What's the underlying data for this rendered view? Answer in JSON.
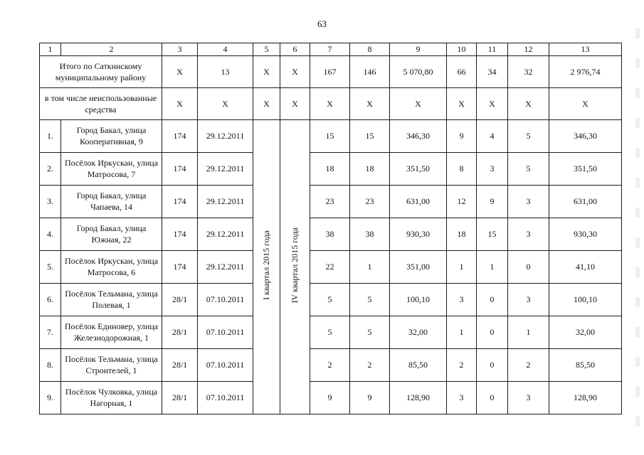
{
  "page": {
    "number": "63"
  },
  "table": {
    "column_numbers": [
      "1",
      "2",
      "3",
      "4",
      "5",
      "6",
      "7",
      "8",
      "9",
      "10",
      "11",
      "12",
      "13"
    ],
    "summary_rows": [
      {
        "label": "Итого по Саткинскому муниципальному району",
        "cells": [
          "X",
          "13",
          "X",
          "X",
          "167",
          "146",
          "5 070,80",
          "66",
          "34",
          "32",
          "2 976,74"
        ]
      },
      {
        "label": "в том числе неиспользованные средства",
        "cells": [
          "X",
          "X",
          "X",
          "X",
          "X",
          "X",
          "X",
          "X",
          "X",
          "X",
          "X"
        ]
      }
    ],
    "quarters": {
      "q1": "I квартал 2015 года",
      "q2": "IV квартал 2015 года"
    },
    "rows": [
      {
        "c1": "1.",
        "c2": "Город Бакал, улица Кооперативная, 9",
        "c3": "174",
        "c4": "29.12.2011",
        "c7": "15",
        "c8": "15",
        "c9": "346,30",
        "c10": "9",
        "c11": "4",
        "c12": "5",
        "c13": "346,30"
      },
      {
        "c1": "2.",
        "c2": "Посёлок Иркускан, улица Матросова, 7",
        "c3": "174",
        "c4": "29.12.2011",
        "c7": "18",
        "c8": "18",
        "c9": "351,50",
        "c10": "8",
        "c11": "3",
        "c12": "5",
        "c13": "351,50"
      },
      {
        "c1": "3.",
        "c2": "Город Бакал, улица Чапаева, 14",
        "c3": "174",
        "c4": "29.12.2011",
        "c7": "23",
        "c8": "23",
        "c9": "631,00",
        "c10": "12",
        "c11": "9",
        "c12": "3",
        "c13": "631,00"
      },
      {
        "c1": "4.",
        "c2": "Город Бакал, улица Южная, 22",
        "c3": "174",
        "c4": "29.12.2011",
        "c7": "38",
        "c8": "38",
        "c9": "930,30",
        "c10": "18",
        "c11": "15",
        "c12": "3",
        "c13": "930,30"
      },
      {
        "c1": "5.",
        "c2": "Посёлок Иркускан, улица Матросова, 6",
        "c3": "174",
        "c4": "29.12.2011",
        "c7": "22",
        "c8": "1",
        "c9": "351,00",
        "c10": "1",
        "c11": "1",
        "c12": "0",
        "c13": "41,10"
      },
      {
        "c1": "6.",
        "c2": "Посёлок Тельмана, улица Полевая, 1",
        "c3": "28/1",
        "c4": "07.10.2011",
        "c7": "5",
        "c8": "5",
        "c9": "100,10",
        "c10": "3",
        "c11": "0",
        "c12": "3",
        "c13": "100,10"
      },
      {
        "c1": "7.",
        "c2": "Посёлок Единовер, улица Железнодорожная, 1",
        "c3": "28/1",
        "c4": "07.10.2011",
        "c7": "5",
        "c8": "5",
        "c9": "32,00",
        "c10": "1",
        "c11": "0",
        "c12": "1",
        "c13": "32,00"
      },
      {
        "c1": "8.",
        "c2": "Посёлок Тельмана, улица Строителей, 1",
        "c3": "28/1",
        "c4": "07.10.2011",
        "c7": "2",
        "c8": "2",
        "c9": "85,50",
        "c10": "2",
        "c11": "0",
        "c12": "2",
        "c13": "85,50"
      },
      {
        "c1": "9.",
        "c2": "Посёлок Чулковка, улица Нагорная, 1",
        "c3": "28/1",
        "c4": "07.10.2011",
        "c7": "9",
        "c8": "9",
        "c9": "128,90",
        "c10": "3",
        "c11": "0",
        "c12": "3",
        "c13": "128,90"
      }
    ]
  }
}
